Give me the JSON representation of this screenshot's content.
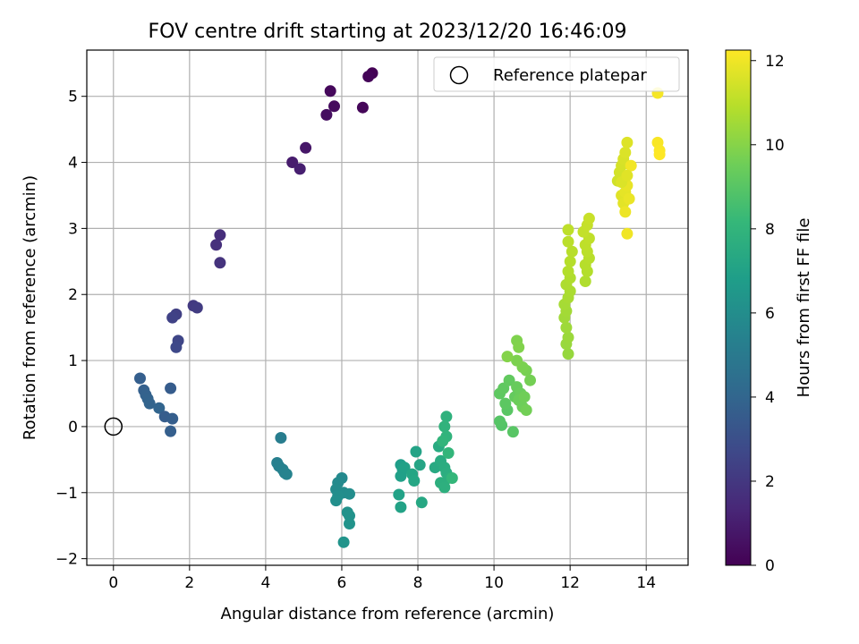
{
  "chart_data": {
    "type": "scatter",
    "title": "FOV centre drift starting at 2023/12/20 16:46:09",
    "xlabel": "Angular distance from reference (arcmin)",
    "ylabel": "Rotation from reference (arcmin)",
    "xlim": [
      -0.7,
      15.1
    ],
    "ylim": [
      -2.1,
      5.7
    ],
    "xticks": [
      0,
      2,
      4,
      6,
      8,
      10,
      12,
      14
    ],
    "yticks": [
      -2,
      -1,
      0,
      1,
      2,
      3,
      4,
      5
    ],
    "xtick_labels": [
      "0",
      "2",
      "4",
      "6",
      "8",
      "10",
      "12",
      "14"
    ],
    "ytick_labels": [
      "−2",
      "−1",
      "0",
      "1",
      "2",
      "3",
      "4",
      "5"
    ],
    "grid": true,
    "legend": {
      "position": "top-right",
      "entries": [
        "Reference platepar"
      ]
    },
    "reference_point": {
      "x": 0,
      "y": 0,
      "name": "Reference platepar",
      "marker": "open-circle"
    },
    "colorbar": {
      "label": "Hours from first FF file",
      "colormap": "viridis",
      "range": [
        0,
        12.25
      ],
      "ticks": [
        0,
        2,
        4,
        6,
        8,
        10,
        12
      ],
      "tick_labels": [
        "0",
        "2",
        "4",
        "6",
        "8",
        "10",
        "12"
      ],
      "stops": [
        "#440154",
        "#482878",
        "#3e4989",
        "#31688e",
        "#26828e",
        "#1f9e89",
        "#35b779",
        "#6ece58",
        "#b5de2b",
        "#fde725"
      ]
    },
    "series": [
      {
        "points": [
          [
            6.8,
            5.35
          ],
          [
            6.7,
            5.3
          ],
          [
            5.7,
            5.08
          ],
          [
            5.8,
            4.85
          ],
          [
            6.55,
            4.83
          ],
          [
            5.6,
            4.72
          ],
          [
            5.05,
            4.22
          ],
          [
            4.7,
            4.0
          ],
          [
            4.9,
            3.9
          ],
          [
            2.8,
            2.9
          ],
          [
            2.7,
            2.75
          ],
          [
            2.8,
            2.48
          ],
          [
            2.1,
            1.83
          ],
          [
            2.2,
            1.8
          ],
          [
            1.65,
            1.7
          ],
          [
            1.55,
            1.65
          ],
          [
            1.7,
            1.3
          ],
          [
            1.65,
            1.2
          ],
          [
            0.7,
            0.73
          ],
          [
            0.8,
            0.55
          ],
          [
            0.85,
            0.48
          ],
          [
            0.9,
            0.42
          ],
          [
            0.95,
            0.35
          ],
          [
            1.2,
            0.28
          ],
          [
            1.5,
            0.58
          ],
          [
            1.35,
            0.15
          ],
          [
            1.55,
            0.12
          ],
          [
            1.5,
            -0.07
          ],
          [
            4.4,
            -0.17
          ],
          [
            4.3,
            -0.55
          ],
          [
            4.35,
            -0.6
          ],
          [
            4.45,
            -0.65
          ],
          [
            4.5,
            -0.7
          ],
          [
            4.55,
            -0.72
          ],
          [
            6.0,
            -0.78
          ],
          [
            5.9,
            -0.85
          ],
          [
            5.85,
            -0.95
          ],
          [
            6.05,
            -1.0
          ],
          [
            6.2,
            -1.02
          ],
          [
            5.9,
            -1.05
          ],
          [
            5.85,
            -1.12
          ],
          [
            6.15,
            -1.3
          ],
          [
            6.2,
            -1.35
          ],
          [
            6.2,
            -1.47
          ],
          [
            6.05,
            -1.75
          ],
          [
            7.55,
            -0.58
          ],
          [
            7.6,
            -0.65
          ],
          [
            7.55,
            -0.75
          ],
          [
            7.65,
            -0.62
          ],
          [
            7.5,
            -1.03
          ],
          [
            7.55,
            -1.22
          ],
          [
            7.95,
            -0.38
          ],
          [
            8.05,
            -0.58
          ],
          [
            7.85,
            -0.72
          ],
          [
            7.9,
            -0.82
          ],
          [
            8.1,
            -1.15
          ],
          [
            8.45,
            -0.62
          ],
          [
            8.55,
            -0.3
          ],
          [
            8.6,
            -0.52
          ],
          [
            8.7,
            -0.62
          ],
          [
            8.75,
            -0.7
          ],
          [
            8.8,
            -0.78
          ],
          [
            8.6,
            -0.85
          ],
          [
            8.7,
            -0.92
          ],
          [
            8.75,
            0.15
          ],
          [
            8.7,
            0.0
          ],
          [
            8.75,
            -0.15
          ],
          [
            8.65,
            -0.22
          ],
          [
            8.8,
            -0.4
          ],
          [
            8.9,
            -0.78
          ],
          [
            10.2,
            0.02
          ],
          [
            10.15,
            0.08
          ],
          [
            10.5,
            -0.08
          ],
          [
            10.35,
            0.25
          ],
          [
            10.3,
            0.35
          ],
          [
            10.15,
            0.5
          ],
          [
            10.25,
            0.58
          ],
          [
            10.4,
            0.7
          ],
          [
            10.55,
            0.45
          ],
          [
            10.6,
            0.6
          ],
          [
            10.7,
            0.5
          ],
          [
            10.65,
            0.4
          ],
          [
            10.75,
            0.3
          ],
          [
            10.8,
            0.45
          ],
          [
            10.85,
            0.25
          ],
          [
            10.95,
            0.7
          ],
          [
            10.85,
            0.85
          ],
          [
            10.75,
            0.9
          ],
          [
            10.6,
            1.0
          ],
          [
            10.6,
            1.3
          ],
          [
            10.65,
            1.2
          ],
          [
            10.35,
            1.06
          ],
          [
            11.95,
            1.1
          ],
          [
            11.9,
            1.25
          ],
          [
            11.95,
            1.35
          ],
          [
            11.9,
            1.5
          ],
          [
            11.85,
            1.65
          ],
          [
            11.9,
            1.75
          ],
          [
            11.85,
            1.85
          ],
          [
            11.95,
            1.95
          ],
          [
            12.0,
            2.05
          ],
          [
            11.9,
            2.15
          ],
          [
            12.0,
            2.25
          ],
          [
            11.95,
            2.35
          ],
          [
            12.0,
            2.5
          ],
          [
            12.05,
            2.65
          ],
          [
            11.95,
            2.8
          ],
          [
            11.95,
            2.98
          ],
          [
            12.4,
            2.2
          ],
          [
            12.45,
            2.35
          ],
          [
            12.4,
            2.45
          ],
          [
            12.5,
            2.55
          ],
          [
            12.45,
            2.65
          ],
          [
            12.4,
            2.75
          ],
          [
            12.5,
            2.85
          ],
          [
            12.35,
            2.95
          ],
          [
            12.45,
            3.05
          ],
          [
            12.5,
            3.15
          ],
          [
            13.25,
            3.72
          ],
          [
            13.3,
            3.85
          ],
          [
            13.35,
            3.95
          ],
          [
            13.4,
            4.05
          ],
          [
            13.45,
            4.15
          ],
          [
            13.5,
            4.3
          ],
          [
            13.35,
            3.5
          ],
          [
            13.4,
            3.38
          ],
          [
            13.45,
            3.55
          ],
          [
            13.5,
            3.65
          ],
          [
            13.55,
            3.45
          ],
          [
            13.45,
            3.25
          ],
          [
            13.5,
            2.92
          ],
          [
            13.6,
            3.95
          ],
          [
            13.35,
            3.7
          ],
          [
            13.5,
            3.8
          ],
          [
            14.3,
            5.05
          ],
          [
            14.3,
            4.3
          ],
          [
            14.35,
            4.18
          ],
          [
            14.35,
            4.12
          ]
        ],
        "hours": [
          0.05,
          0.15,
          0.25,
          0.35,
          0.2,
          0.45,
          0.75,
          0.95,
          1.05,
          1.6,
          1.7,
          1.8,
          2.1,
          2.2,
          2.35,
          2.45,
          2.6,
          2.7,
          3.7,
          3.75,
          3.8,
          3.85,
          3.9,
          3.95,
          3.55,
          3.6,
          3.65,
          3.7,
          5.2,
          5.3,
          5.35,
          5.4,
          5.45,
          5.5,
          5.8,
          5.85,
          5.9,
          5.95,
          6.0,
          6.05,
          6.1,
          6.15,
          6.2,
          6.25,
          6.3,
          6.8,
          6.85,
          6.9,
          6.95,
          7.0,
          7.05,
          7.1,
          7.15,
          7.2,
          7.25,
          7.3,
          7.4,
          7.45,
          7.5,
          7.55,
          7.6,
          7.65,
          7.7,
          7.75,
          7.85,
          7.9,
          7.95,
          8.0,
          8.05,
          8.1,
          8.9,
          8.95,
          9.0,
          9.05,
          9.1,
          9.15,
          9.2,
          9.25,
          9.3,
          9.35,
          9.4,
          9.45,
          9.5,
          9.55,
          9.6,
          9.65,
          9.7,
          9.75,
          9.8,
          9.85,
          9.9,
          9.95,
          10.3,
          10.35,
          10.4,
          10.45,
          10.5,
          10.55,
          10.6,
          10.65,
          10.7,
          10.75,
          10.8,
          10.85,
          10.9,
          10.95,
          11.0,
          11.05,
          10.8,
          10.85,
          10.9,
          10.95,
          11.0,
          11.05,
          11.1,
          11.15,
          11.2,
          11.25,
          11.4,
          11.45,
          11.5,
          11.55,
          11.6,
          11.65,
          11.7,
          11.75,
          11.8,
          11.85,
          11.9,
          11.95,
          12.0,
          12.05,
          11.6,
          11.7,
          12.1,
          12.15,
          12.2,
          12.25
        ]
      }
    ]
  }
}
